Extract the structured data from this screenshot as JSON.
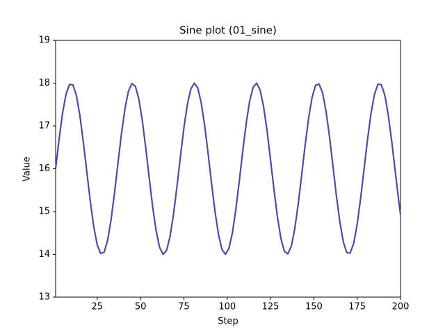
{
  "chart_data": {
    "type": "line",
    "title": "Sine plot (01_sine)",
    "x_label": "Step",
    "y_label": "Value",
    "x": [
      1,
      3,
      5,
      7,
      9,
      11,
      13,
      15,
      17,
      19,
      21,
      23,
      25,
      27,
      29,
      31,
      33,
      35,
      37,
      39,
      41,
      43,
      45,
      47,
      49,
      51,
      53,
      55,
      57,
      59,
      61,
      63,
      65,
      67,
      69,
      71,
      73,
      75,
      77,
      79,
      81,
      83,
      85,
      87,
      89,
      91,
      93,
      95,
      97,
      99,
      101,
      103,
      105,
      107,
      109,
      111,
      113,
      115,
      117,
      119,
      121,
      123,
      125,
      127,
      129,
      131,
      133,
      135,
      137,
      139,
      141,
      143,
      145,
      147,
      149,
      151,
      153,
      155,
      157,
      159,
      161,
      163,
      165,
      167,
      169,
      171,
      173,
      175,
      177,
      179,
      181,
      183,
      185,
      187,
      189,
      191,
      193,
      195,
      197,
      199,
      200
    ],
    "series": [
      {
        "name": "sine",
        "color": "#4c4ca6",
        "values": [
          16.0,
          16.69,
          17.3,
          17.74,
          17.97,
          17.96,
          17.71,
          17.24,
          16.62,
          15.93,
          15.24,
          14.65,
          14.22,
          14.02,
          14.05,
          14.33,
          14.81,
          15.44,
          16.14,
          16.82,
          17.4,
          17.81,
          17.99,
          17.93,
          17.63,
          17.13,
          16.49,
          15.79,
          15.11,
          14.55,
          14.16,
          14.0,
          14.09,
          14.41,
          14.93,
          15.58,
          16.28,
          16.95,
          17.5,
          17.86,
          18.0,
          17.89,
          17.54,
          17.01,
          16.35,
          15.65,
          14.99,
          14.46,
          14.11,
          14.0,
          14.14,
          14.5,
          15.05,
          15.72,
          16.42,
          17.07,
          17.59,
          17.91,
          18.0,
          17.84,
          17.45,
          16.89,
          16.21,
          15.51,
          14.87,
          14.37,
          14.07,
          14.01,
          14.19,
          14.6,
          15.18,
          15.86,
          16.56,
          17.19,
          17.67,
          17.95,
          17.98,
          17.78,
          17.35,
          16.76,
          16.07,
          15.37,
          14.76,
          14.29,
          14.04,
          14.03,
          14.26,
          14.7,
          15.31,
          16.0,
          16.69,
          17.3,
          17.74,
          17.98,
          17.96,
          17.71,
          17.24,
          16.62,
          15.93,
          15.24,
          14.93
        ]
      }
    ],
    "xlim": [
      1,
      200
    ],
    "xticks": [
      25,
      50,
      75,
      100,
      125,
      150,
      175,
      200
    ],
    "ylim": [
      13,
      19
    ],
    "yticks": [
      13,
      14,
      15,
      16,
      17,
      18,
      19
    ],
    "grid": false
  }
}
